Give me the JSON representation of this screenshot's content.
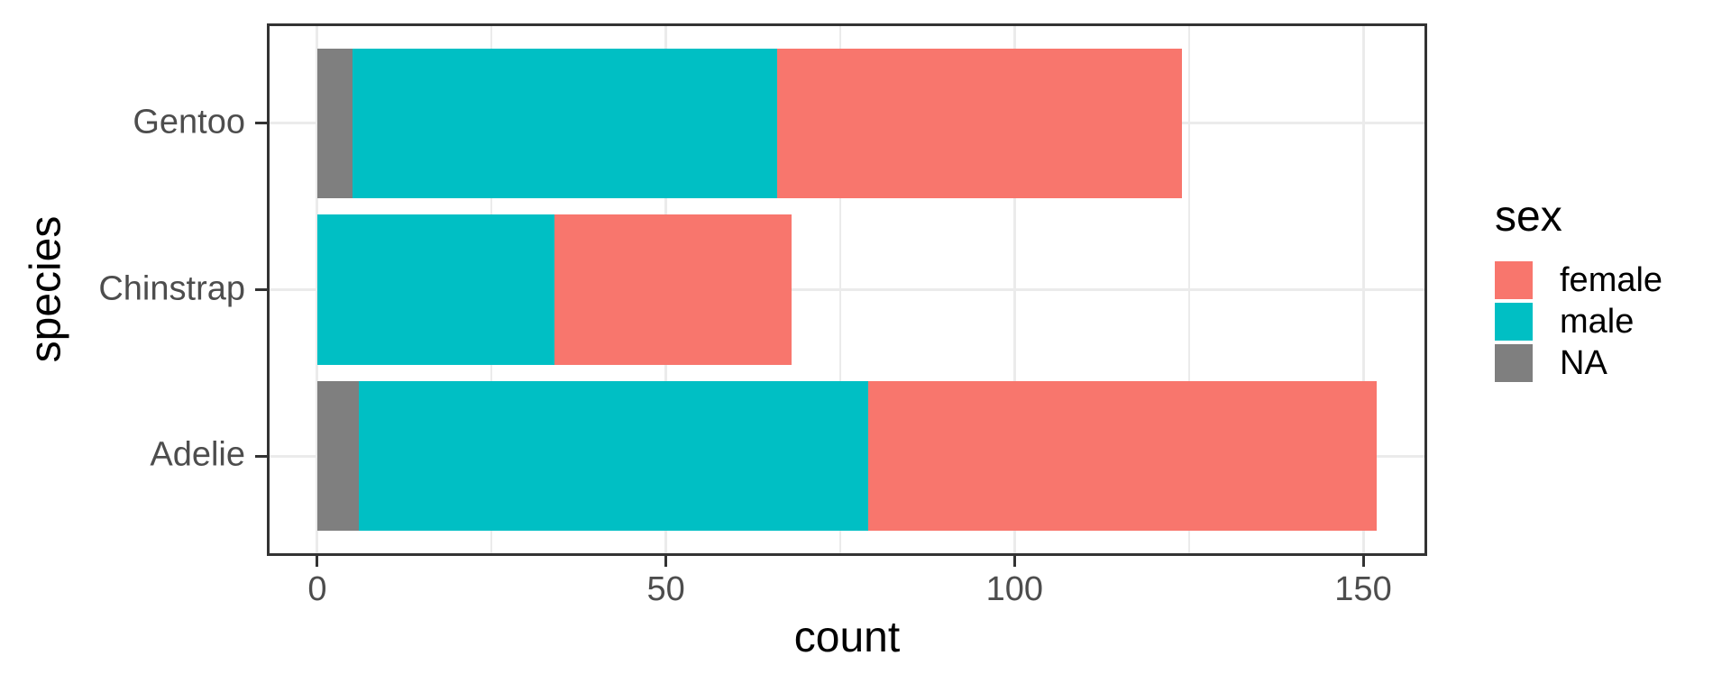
{
  "chart_data": {
    "type": "bar",
    "orientation": "horizontal",
    "stacked": true,
    "title": "",
    "xlabel": "count",
    "ylabel": "species",
    "categories": [
      "Gentoo",
      "Chinstrap",
      "Adelie"
    ],
    "stack_order_left_to_right": [
      "NA",
      "male",
      "female"
    ],
    "series": [
      {
        "name": "female",
        "color": "#F8766D",
        "values": [
          58,
          34,
          73
        ]
      },
      {
        "name": "male",
        "color": "#00BFC4",
        "values": [
          61,
          34,
          73
        ]
      },
      {
        "name": "NA",
        "color": "#7F7F7F",
        "values": [
          5,
          0,
          6
        ]
      }
    ],
    "totals": [
      124,
      68,
      152
    ],
    "x_axis": {
      "ticks": [
        0,
        50,
        100,
        150
      ],
      "minor_ticks": [
        25,
        75,
        125
      ],
      "range": [
        -7.24,
        159.18
      ]
    },
    "y_axis": {
      "category_width": 0.9,
      "range": [
        0.4,
        3.6
      ]
    },
    "grid": {
      "show": true,
      "color": "#EBEBEB"
    },
    "legend": {
      "title": "sex",
      "position": "right",
      "entries": [
        {
          "label": "female",
          "color": "#F8766D"
        },
        {
          "label": "male",
          "color": "#00BFC4"
        },
        {
          "label": "NA",
          "color": "#7F7F7F"
        }
      ]
    },
    "style": {
      "background": "#FFFFFF",
      "panel_border": "#333333",
      "tick_mark_color": "#333333",
      "tick_label_color": "#4D4D4D",
      "axis_title_color": "#000000"
    }
  }
}
